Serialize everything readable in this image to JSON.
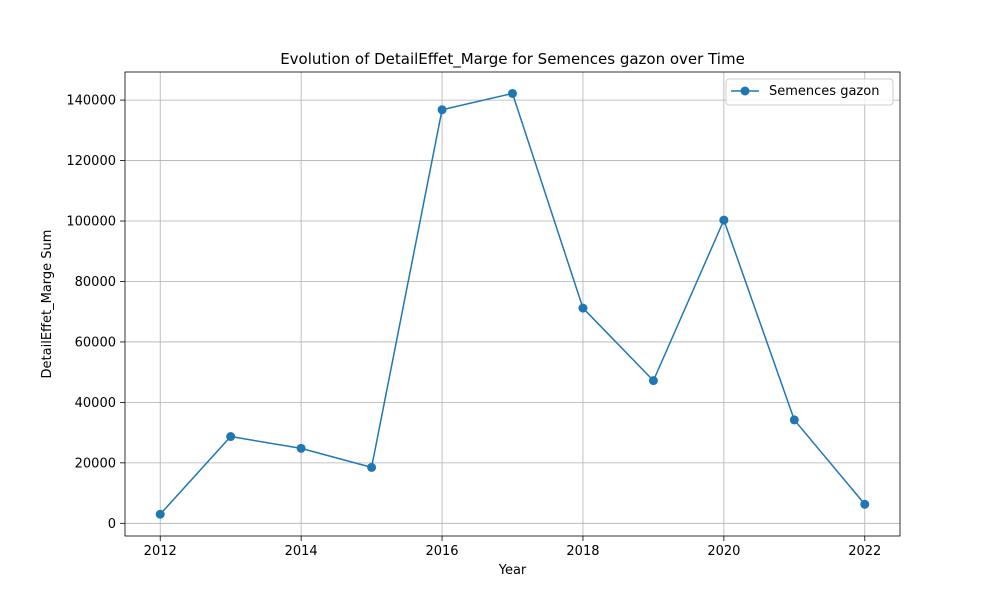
{
  "chart_data": {
    "type": "line",
    "title": "Evolution of DetailEffet_Marge for Semences gazon over Time",
    "xlabel": "Year",
    "ylabel": "DetailEffet_Marge Sum",
    "x": [
      2012,
      2013,
      2014,
      2015,
      2016,
      2017,
      2018,
      2019,
      2020,
      2021,
      2022
    ],
    "series": [
      {
        "name": "Semences gazon",
        "values": [
          3000,
          28700,
          24800,
          18500,
          136800,
          142200,
          71200,
          47200,
          100300,
          34200,
          6300
        ],
        "color": "#1f77b4",
        "marker": "circle"
      }
    ],
    "xticks": [
      2012,
      2014,
      2016,
      2018,
      2020,
      2022
    ],
    "yticks": [
      0,
      20000,
      40000,
      60000,
      80000,
      100000,
      120000,
      140000
    ],
    "xlim": [
      2011.5,
      2022.5
    ],
    "ylim": [
      -4200,
      149300
    ],
    "grid": true,
    "legend_position": "top-right"
  }
}
